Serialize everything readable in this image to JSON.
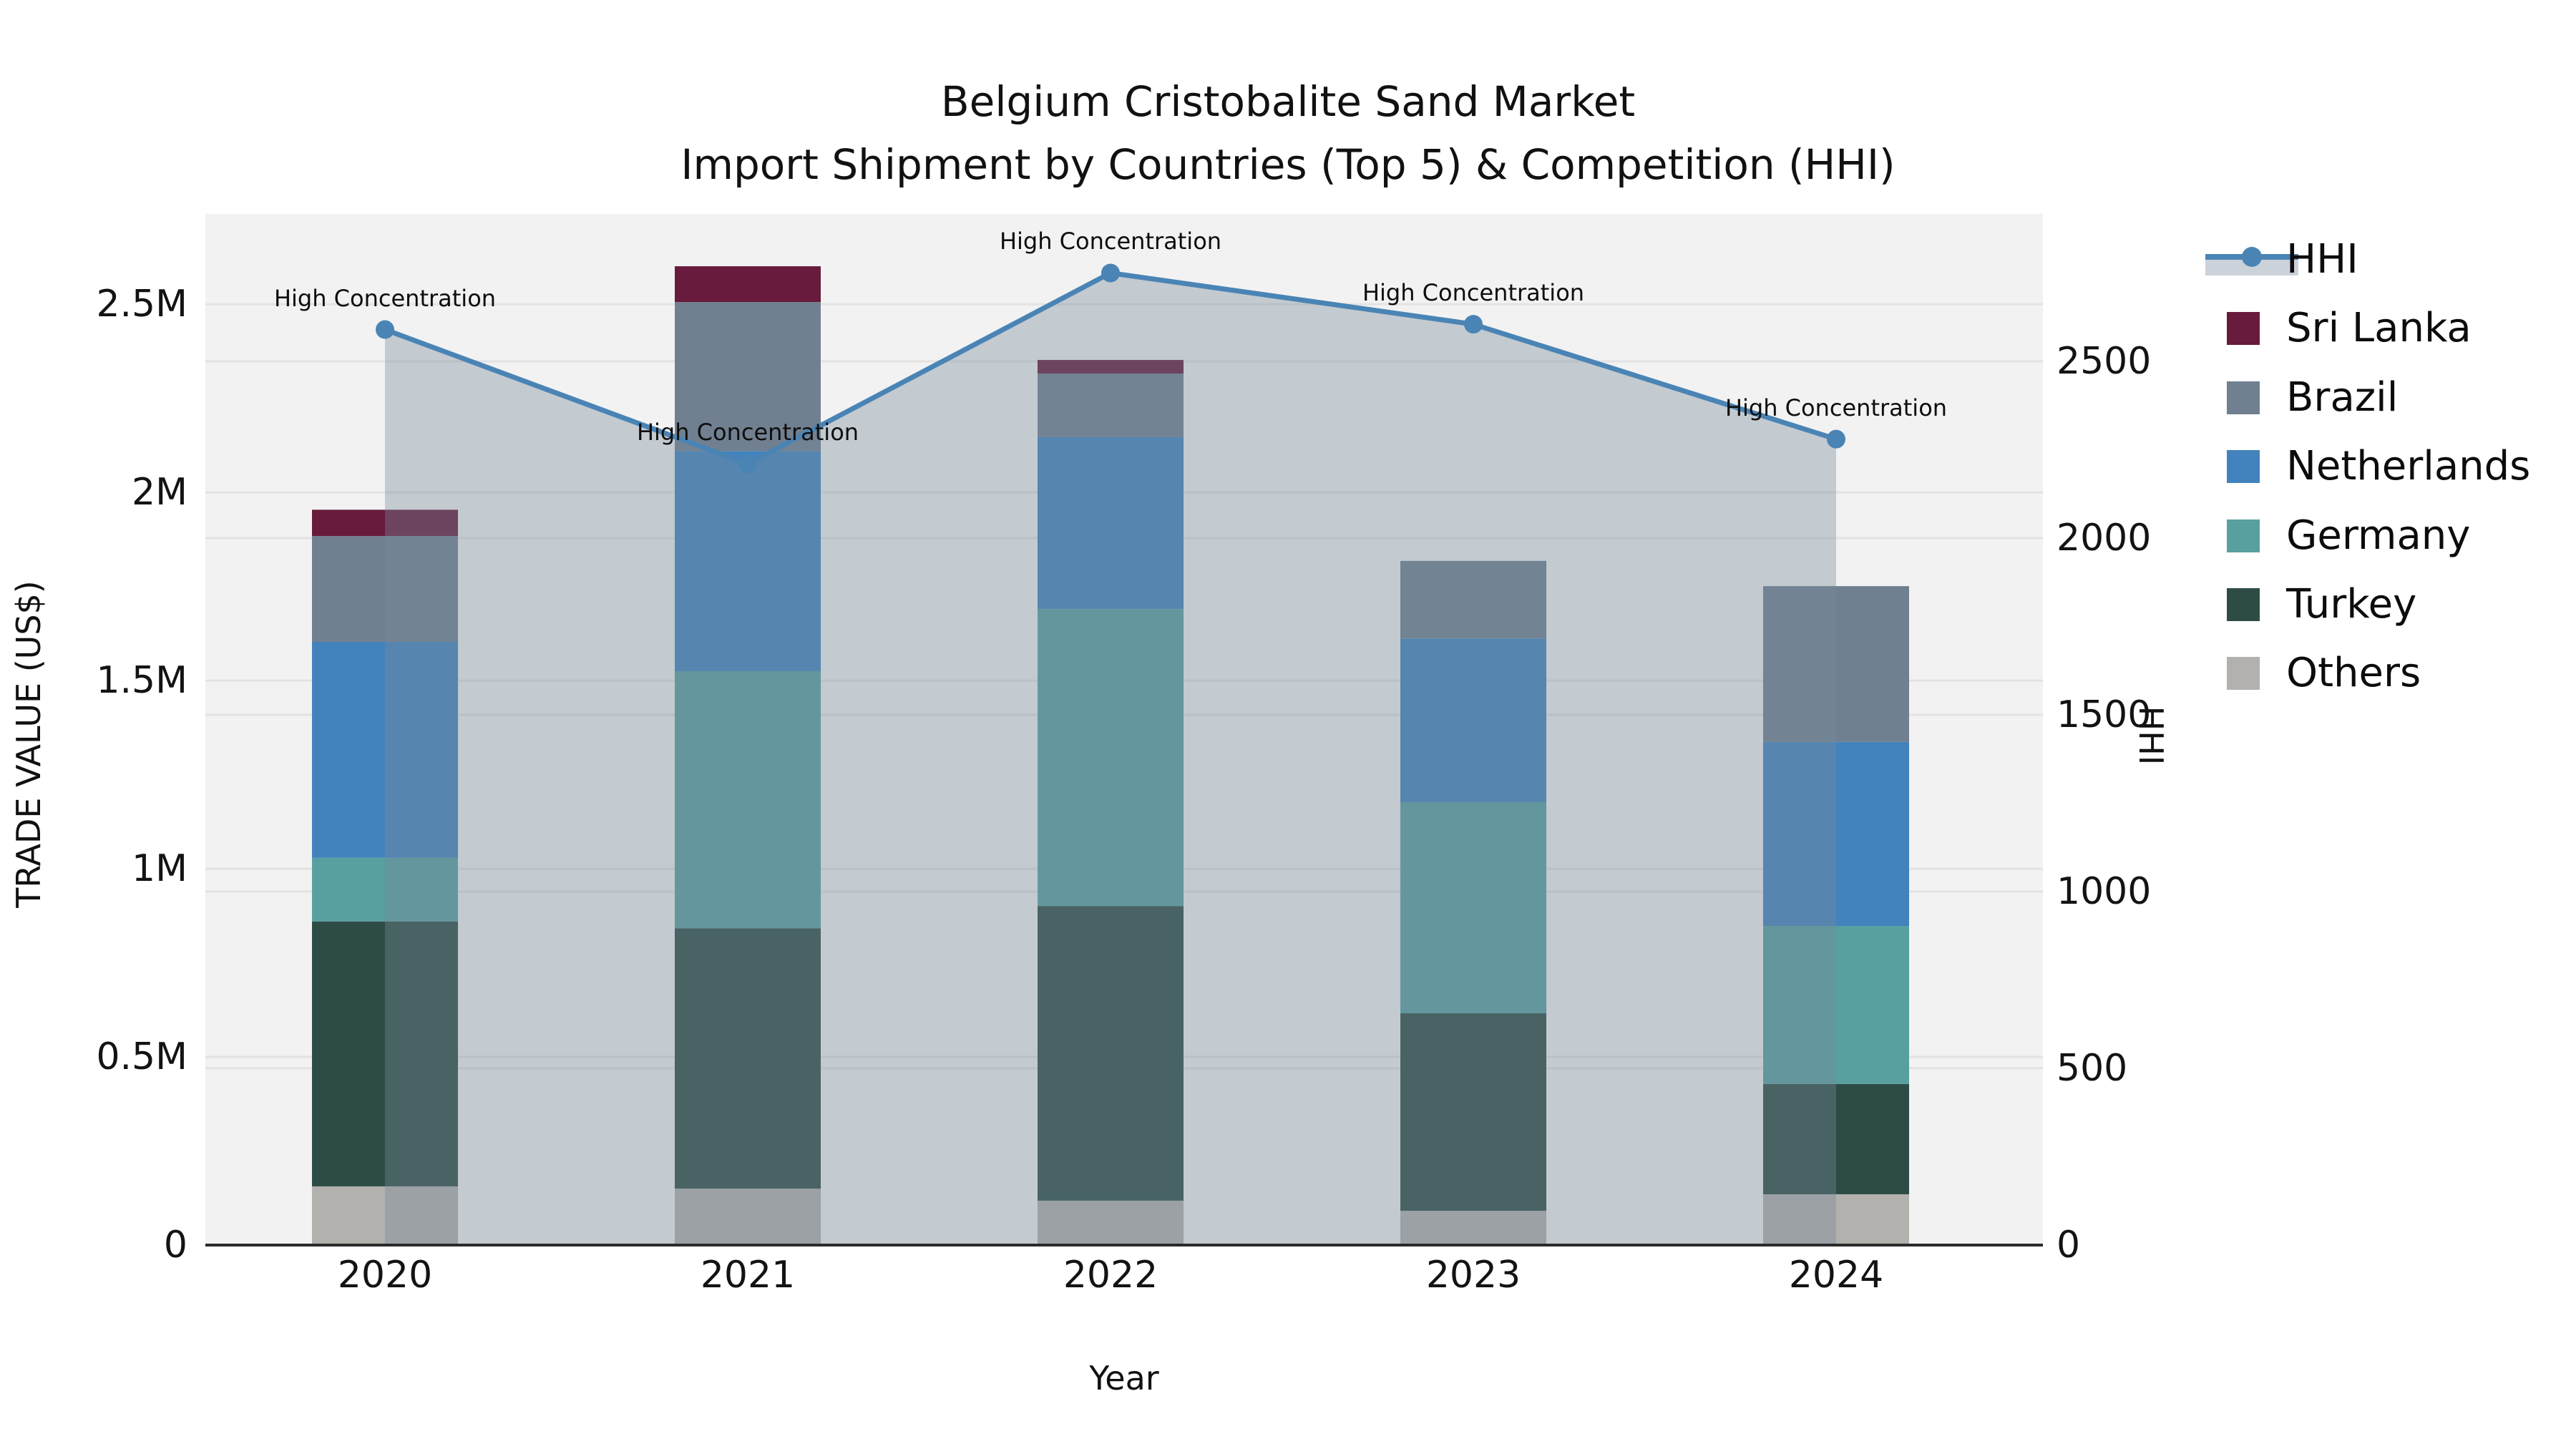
{
  "title": {
    "line1": "Belgium Cristobalite Sand Market",
    "line2": "Import Shipment by Countries (Top 5) & Competition (HHI)"
  },
  "axes": {
    "x_label": "Year",
    "y_left_label": "TRADE VALUE (US$)",
    "y_right_label": "HHI",
    "y_left_tick_labels": [
      "0",
      "0.5M",
      "1M",
      "1.5M",
      "2M",
      "2.5M"
    ],
    "y_right_tick_labels": [
      "0",
      "500",
      "1000",
      "1500",
      "2000",
      "2500"
    ]
  },
  "legend": {
    "items": [
      {
        "label": "HHI",
        "type": "line",
        "color": "#4a84b5"
      },
      {
        "label": "Sri Lanka",
        "type": "square",
        "color": "#681b3c"
      },
      {
        "label": "Brazil",
        "type": "square",
        "color": "#708090"
      },
      {
        "label": "Netherlands",
        "type": "square",
        "color": "#4383bd"
      },
      {
        "label": "Germany",
        "type": "square",
        "color": "#58a0a0"
      },
      {
        "label": "Turkey",
        "type": "square",
        "color": "#2e4c46"
      },
      {
        "label": "Others",
        "type": "square",
        "color": "#b3b1ae"
      }
    ]
  },
  "chart_data": {
    "type": "combo: stacked bar (left axis) + line with area fill (right axis)",
    "title": "Belgium Cristobalite Sand Market — Import Shipment by Countries (Top 5) & Competition (HHI)",
    "categories": [
      "2020",
      "2021",
      "2022",
      "2023",
      "2024"
    ],
    "xlabel": "Year",
    "ylabel_left": "TRADE VALUE (US$)",
    "ylabel_right": "HHI",
    "ylim_left": [
      0,
      2740000
    ],
    "ylim_right": [
      0,
      2917
    ],
    "yticks_left": [
      0,
      500000,
      1000000,
      1500000,
      2000000,
      2500000
    ],
    "yticks_right": [
      0,
      500,
      1000,
      1500,
      2000,
      2500
    ],
    "grid": true,
    "legend_position": "right",
    "plot_background": "#f2f2f2",
    "series_stacked_bottom_to_top": [
      {
        "name": "Others",
        "color": "#b3b1ae",
        "values": [
          156000,
          150000,
          118000,
          91000,
          135000
        ]
      },
      {
        "name": "Turkey",
        "color": "#2e4c46",
        "values": [
          704000,
          692000,
          783000,
          525000,
          293000
        ]
      },
      {
        "name": "Germany",
        "color": "#58a0a0",
        "values": [
          169000,
          683000,
          789000,
          561000,
          420000
        ]
      },
      {
        "name": "Netherlands",
        "color": "#4383bd",
        "values": [
          574000,
          585000,
          457000,
          435000,
          489000
        ]
      },
      {
        "name": "Brazil",
        "color": "#708090",
        "values": [
          281000,
          396000,
          169000,
          206000,
          414000
        ]
      },
      {
        "name": "Sri Lanka",
        "color": "#681b3c",
        "values": [
          70000,
          95000,
          36000,
          0,
          0
        ]
      }
    ],
    "bar_totals": [
      1954000,
      2601000,
      2352000,
      1818000,
      1751000
    ],
    "line_series": {
      "name": "HHI",
      "axis": "right",
      "color": "#4a84b5",
      "area_fill": "rgba(119,136,153,0.38)",
      "values": [
        2590,
        2210,
        2750,
        2605,
        2280
      ]
    },
    "annotations": [
      {
        "year": "2020",
        "text": "High Concentration"
      },
      {
        "year": "2021",
        "text": "High Concentration"
      },
      {
        "year": "2022",
        "text": "High Concentration"
      },
      {
        "year": "2023",
        "text": "High Concentration"
      },
      {
        "year": "2024",
        "text": "High Concentration"
      }
    ]
  }
}
